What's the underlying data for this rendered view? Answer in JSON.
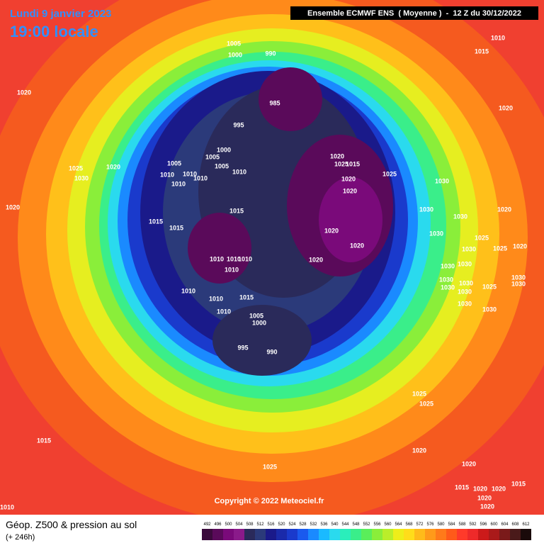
{
  "header": {
    "date": "Lundi 9 janvier 2023",
    "local_time": "19:00 locale",
    "model": "Ensemble ECMWF ENS  ( Moyenne )  -  12 Z du 30/12/2022"
  },
  "map": {
    "copyright": "Copyright © 2022 Meteociel.fr",
    "pressure_labels": [
      "1005",
      "1000",
      "990",
      "1010",
      "1015",
      "1020",
      "985",
      "1020",
      "995",
      "1000",
      "1005",
      "1005",
      "1005",
      "1020",
      "1025",
      "1015",
      "1025",
      "1020",
      "1030",
      "1010",
      "1010",
      "1010",
      "1010",
      "1010",
      "1025",
      "1030",
      "1020",
      "1020",
      "1020",
      "1015",
      "1030",
      "1020",
      "1015",
      "1015",
      "1030",
      "1020",
      "1030",
      "1025",
      "1010",
      "1010",
      "1010",
      "1010",
      "1020",
      "1020",
      "1030",
      "1025",
      "1020",
      "1030",
      "1030",
      "1010",
      "1015",
      "1010",
      "1010",
      "1030",
      "1030",
      "1025",
      "1030",
      "1030",
      "1030",
      "1030",
      "1030",
      "1030",
      "1005",
      "1000",
      "995",
      "990",
      "1025",
      "1025",
      "1015",
      "1020",
      "1020",
      "1025",
      "1015",
      "1020",
      "1020",
      "1015",
      "1020",
      "1020",
      "1010"
    ]
  },
  "footer": {
    "title": "Géop. Z500 & pression au sol",
    "lead": "(+ 246h)"
  },
  "legend": {
    "values": [
      492,
      496,
      500,
      504,
      508,
      512,
      516,
      520,
      524,
      528,
      532,
      536,
      540,
      544,
      548,
      552,
      556,
      560,
      564,
      568,
      572,
      576,
      580,
      584,
      588,
      592,
      596,
      600,
      604,
      608,
      612
    ],
    "colors": [
      "#3b0a3c",
      "#5a0a5a",
      "#7a0a7a",
      "#8a1a8a",
      "#2a2a5a",
      "#2b3a7a",
      "#1a1a8a",
      "#1a2aaa",
      "#1a3acc",
      "#1a5aee",
      "#1a8aff",
      "#1abaff",
      "#2adaee",
      "#2aeebb",
      "#3aee8a",
      "#5aee5a",
      "#8aee3a",
      "#baee2a",
      "#eeee1a",
      "#ffdd1a",
      "#ffbb1a",
      "#ff9a1a",
      "#ff7a1a",
      "#ff5a1a",
      "#ff3a2a",
      "#ee2a2a",
      "#cc1a1a",
      "#aa1a1a",
      "#7a1a1a",
      "#4a1a1a",
      "#1a0a0a"
    ]
  }
}
